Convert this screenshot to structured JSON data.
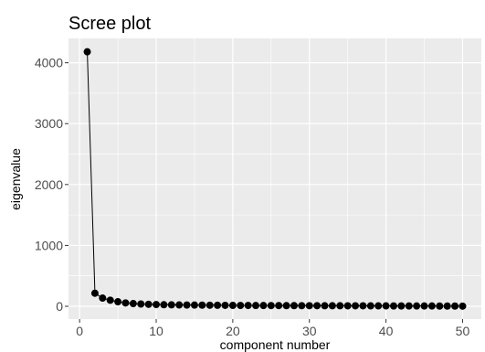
{
  "chart_data": {
    "type": "line",
    "title": "Scree plot",
    "xlabel": "component number",
    "ylabel": "eigenvalue",
    "xlim": [
      -1.45,
      52.45
    ],
    "ylim": [
      -210,
      4400
    ],
    "x_ticks": [
      0,
      10,
      20,
      30,
      40,
      50
    ],
    "x_tick_labels": [
      "0",
      "10",
      "20",
      "30",
      "40",
      "50"
    ],
    "y_ticks": [
      0,
      1000,
      2000,
      3000,
      4000
    ],
    "y_tick_labels": [
      "0",
      "1000",
      "2000",
      "3000",
      "4000"
    ],
    "grid": true,
    "background_color": "#ebebeb",
    "grid_color": "#ffffff",
    "line_color": "#000000",
    "point_color": "#000000",
    "x": [
      1,
      2,
      3,
      4,
      5,
      6,
      7,
      8,
      9,
      10,
      11,
      12,
      13,
      14,
      15,
      16,
      17,
      18,
      19,
      20,
      21,
      22,
      23,
      24,
      25,
      26,
      27,
      28,
      29,
      30,
      31,
      32,
      33,
      34,
      35,
      36,
      37,
      38,
      39,
      40,
      41,
      42,
      43,
      44,
      45,
      46,
      47,
      48,
      49,
      50
    ],
    "y": [
      4180,
      215,
      135,
      100,
      75,
      55,
      45,
      38,
      33,
      29,
      26,
      24,
      22,
      21,
      20,
      19,
      18,
      17,
      16,
      15,
      14,
      14,
      13,
      13,
      12,
      12,
      11,
      11,
      10,
      10,
      10,
      9,
      9,
      9,
      8,
      8,
      8,
      7,
      7,
      7,
      6,
      6,
      6,
      5,
      5,
      5,
      4,
      4,
      4,
      3
    ]
  }
}
